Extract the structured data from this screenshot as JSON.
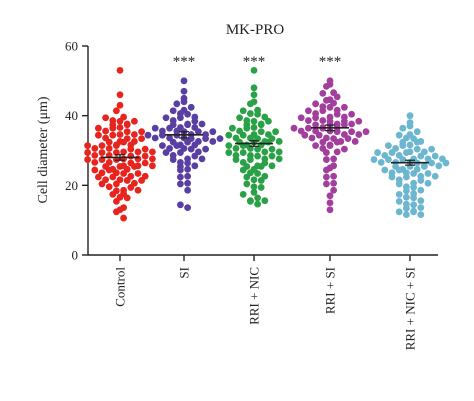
{
  "chart_data": {
    "type": "scatter",
    "title": "MK-PRO",
    "ylabel": "Cell diameter (μm)",
    "xlabel": "",
    "ylim": [
      0,
      60
    ],
    "yticks": [
      0,
      20,
      40,
      60
    ],
    "grid": false,
    "legend": "none",
    "categories": [
      "Control",
      "SI",
      "RRI + NIC",
      "RRI + SI",
      "RRI + NIC + SI"
    ],
    "series": [
      {
        "category": "Control",
        "color": "#e8241f",
        "mean": 28,
        "sem": 0.8,
        "significance": "",
        "values": [
          53,
          46,
          43,
          41,
          40,
          39,
          39,
          38,
          38,
          38,
          37,
          37,
          37,
          36,
          36,
          36,
          35,
          35,
          35,
          35,
          34,
          34,
          34,
          33,
          33,
          33,
          33,
          32,
          32,
          32,
          32,
          31,
          31,
          31,
          31,
          31,
          30,
          30,
          30,
          30,
          30,
          29,
          29,
          29,
          29,
          29,
          28,
          28,
          28,
          28,
          28,
          27,
          27,
          27,
          27,
          27,
          26,
          26,
          26,
          26,
          26,
          25,
          25,
          25,
          25,
          25,
          24,
          24,
          24,
          24,
          23,
          23,
          23,
          23,
          22,
          22,
          22,
          22,
          21,
          21,
          21,
          20,
          20,
          20,
          19,
          19,
          19,
          18,
          18,
          17,
          17,
          16,
          15,
          14,
          13,
          12,
          11
        ]
      },
      {
        "category": "SI",
        "color": "#5a3fa3",
        "mean": 34.5,
        "sem": 0.9,
        "significance": "***",
        "values": [
          50,
          47,
          45,
          44,
          43,
          42,
          42,
          41,
          41,
          40,
          40,
          39,
          39,
          39,
          38,
          38,
          38,
          37,
          37,
          37,
          37,
          36,
          36,
          36,
          36,
          35,
          35,
          35,
          35,
          35,
          34,
          34,
          34,
          34,
          34,
          34,
          33,
          33,
          33,
          33,
          33,
          32,
          32,
          32,
          32,
          31,
          31,
          31,
          31,
          30,
          30,
          30,
          29,
          29,
          29,
          28,
          28,
          28,
          27,
          27,
          26,
          26,
          25,
          25,
          24,
          23,
          22,
          21,
          20,
          19,
          14,
          14
        ]
      },
      {
        "category": "RRI + NIC",
        "color": "#2aa146",
        "mean": 32,
        "sem": 0.8,
        "significance": "***",
        "values": [
          53,
          48,
          46,
          44,
          43,
          42,
          41,
          41,
          40,
          40,
          39,
          39,
          38,
          38,
          38,
          37,
          37,
          37,
          36,
          36,
          36,
          35,
          35,
          35,
          35,
          34,
          34,
          34,
          34,
          33,
          33,
          33,
          33,
          32,
          32,
          32,
          32,
          32,
          31,
          31,
          31,
          31,
          30,
          30,
          30,
          30,
          29,
          29,
          29,
          29,
          28,
          28,
          28,
          28,
          27,
          27,
          27,
          26,
          26,
          26,
          25,
          25,
          25,
          24,
          24,
          23,
          23,
          22,
          22,
          21,
          20,
          20,
          19,
          18,
          17,
          16,
          16,
          16,
          15,
          15
        ]
      },
      {
        "category": "RRI + SI",
        "color": "#a23e9c",
        "mean": 36.5,
        "sem": 0.8,
        "significance": "***",
        "values": [
          50,
          49,
          48,
          47,
          46,
          45,
          45,
          44,
          44,
          43,
          43,
          42,
          42,
          42,
          41,
          41,
          41,
          40,
          40,
          40,
          40,
          39,
          39,
          39,
          39,
          38,
          38,
          38,
          38,
          38,
          37,
          37,
          37,
          37,
          37,
          36,
          36,
          36,
          36,
          36,
          36,
          35,
          35,
          35,
          35,
          35,
          34,
          34,
          34,
          34,
          33,
          33,
          33,
          33,
          32,
          32,
          32,
          31,
          31,
          31,
          30,
          30,
          29,
          28,
          27,
          26,
          25,
          24,
          23,
          22,
          21,
          20,
          19,
          17,
          15,
          13
        ]
      },
      {
        "category": "RRI + NIC + SI",
        "color": "#6cb6cf",
        "mean": 26.5,
        "sem": 0.7,
        "significance": "",
        "values": [
          40,
          38,
          37,
          36,
          35,
          35,
          34,
          34,
          33,
          33,
          32,
          32,
          32,
          31,
          31,
          31,
          30,
          30,
          30,
          30,
          29,
          29,
          29,
          29,
          29,
          28,
          28,
          28,
          28,
          28,
          27,
          27,
          27,
          27,
          27,
          27,
          26,
          26,
          26,
          26,
          26,
          25,
          25,
          25,
          25,
          25,
          24,
          24,
          24,
          24,
          23,
          23,
          23,
          23,
          22,
          22,
          22,
          21,
          21,
          21,
          20,
          20,
          19,
          19,
          18,
          18,
          17,
          17,
          16,
          16,
          15,
          15,
          14,
          14,
          13,
          13,
          12,
          12,
          12,
          12
        ]
      }
    ]
  }
}
